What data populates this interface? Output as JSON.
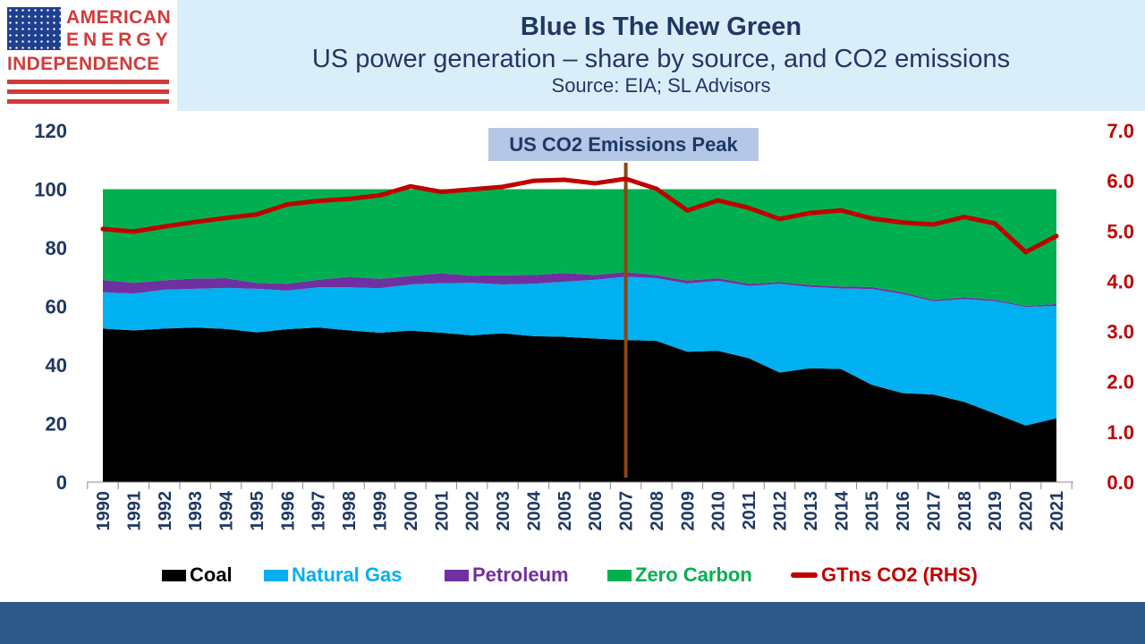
{
  "header": {
    "logo": {
      "line1": "AMERICAN",
      "line2": "ENERGY",
      "line3": "INDEPENDENCE"
    },
    "title": "Blue Is The New Green",
    "subtitle": "US power generation – share by source, and CO2 emissions",
    "source": "Source: EIA; SL Advisors"
  },
  "colors": {
    "coal": "#000000",
    "natural_gas": "#00b0f0",
    "petroleum": "#7030a0",
    "zero_carbon": "#00b050",
    "co2": "#c00000",
    "peak_line": "#8b4513",
    "peak_label_bg": "#b4c7e7",
    "axis_left_text": "#1f3864",
    "axis_right_text": "#c00000"
  },
  "chart_data": {
    "type": "area",
    "title": "",
    "annotation": "US CO2 Emissions Peak",
    "annotation_year": "2007",
    "x": [
      "1990",
      "1991",
      "1992",
      "1993",
      "1994",
      "1995",
      "1996",
      "1997",
      "1998",
      "1999",
      "2000",
      "2001",
      "2002",
      "2003",
      "2004",
      "2005",
      "2006",
      "2007",
      "2008",
      "2009",
      "2010",
      "2011",
      "2012",
      "2013",
      "2014",
      "2015",
      "2016",
      "2017",
      "2018",
      "2019",
      "2020",
      "2021"
    ],
    "ylim": [
      0,
      120
    ],
    "yticks": [
      "0",
      "20",
      "40",
      "60",
      "80",
      "100",
      "120"
    ],
    "y2lim": [
      0,
      7
    ],
    "y2ticks": [
      "0.0",
      "1.0",
      "2.0",
      "3.0",
      "4.0",
      "5.0",
      "6.0",
      "7.0"
    ],
    "stack_total": 100,
    "series": [
      {
        "name": "Coal",
        "key": "coal",
        "type": "area",
        "values": [
          52.4,
          51.8,
          52.4,
          52.8,
          52.3,
          51.1,
          52.2,
          52.8,
          51.8,
          51.0,
          51.7,
          51.0,
          50.1,
          50.8,
          49.8,
          49.6,
          49.0,
          48.5,
          48.2,
          44.5,
          44.8,
          42.3,
          37.4,
          38.9,
          38.6,
          33.2,
          30.4,
          29.9,
          27.4,
          23.4,
          19.3,
          21.8
        ]
      },
      {
        "name": "Natural Gas",
        "key": "natural_gas",
        "type": "area",
        "values": [
          12.4,
          12.6,
          13.3,
          13.2,
          14.0,
          14.9,
          13.2,
          13.7,
          14.7,
          15.2,
          15.8,
          16.9,
          17.9,
          16.7,
          17.9,
          18.8,
          20.1,
          21.6,
          21.4,
          23.3,
          23.9,
          24.7,
          30.3,
          27.7,
          27.5,
          32.7,
          33.8,
          31.8,
          35.1,
          38.4,
          40.5,
          38.4
        ]
      },
      {
        "name": "Petroleum",
        "key": "petroleum",
        "type": "area",
        "values": [
          4.2,
          3.6,
          3.2,
          3.5,
          3.3,
          2.0,
          2.3,
          2.6,
          3.6,
          3.2,
          2.9,
          3.4,
          2.5,
          3.1,
          3.0,
          3.0,
          1.6,
          1.6,
          1.1,
          1.0,
          0.9,
          0.7,
          0.6,
          0.7,
          0.7,
          0.7,
          0.6,
          0.5,
          0.6,
          0.5,
          0.4,
          0.6
        ]
      },
      {
        "name": "Zero Carbon",
        "key": "zero_carbon",
        "type": "area",
        "values": [
          31.0,
          32.0,
          31.1,
          30.5,
          30.4,
          32.0,
          32.3,
          30.9,
          29.9,
          30.6,
          29.6,
          28.7,
          29.5,
          29.4,
          29.3,
          28.6,
          29.3,
          28.3,
          29.3,
          31.2,
          30.4,
          32.3,
          31.7,
          32.7,
          33.2,
          33.4,
          35.2,
          37.8,
          36.9,
          37.7,
          39.8,
          39.2
        ]
      },
      {
        "name": "GTns CO2 (RHS)",
        "key": "co2",
        "type": "line",
        "axis": "right",
        "values": [
          5.04,
          4.99,
          5.09,
          5.18,
          5.26,
          5.33,
          5.53,
          5.6,
          5.64,
          5.71,
          5.89,
          5.78,
          5.83,
          5.88,
          6.0,
          6.02,
          5.95,
          6.04,
          5.84,
          5.41,
          5.61,
          5.46,
          5.24,
          5.36,
          5.41,
          5.25,
          5.17,
          5.13,
          5.28,
          5.15,
          4.58,
          4.9
        ]
      }
    ],
    "legend": [
      "Coal",
      "Natural Gas",
      "Petroleum",
      "Zero Carbon",
      "GTns CO2 (RHS)"
    ],
    "legend_position": "bottom",
    "grid": false
  }
}
